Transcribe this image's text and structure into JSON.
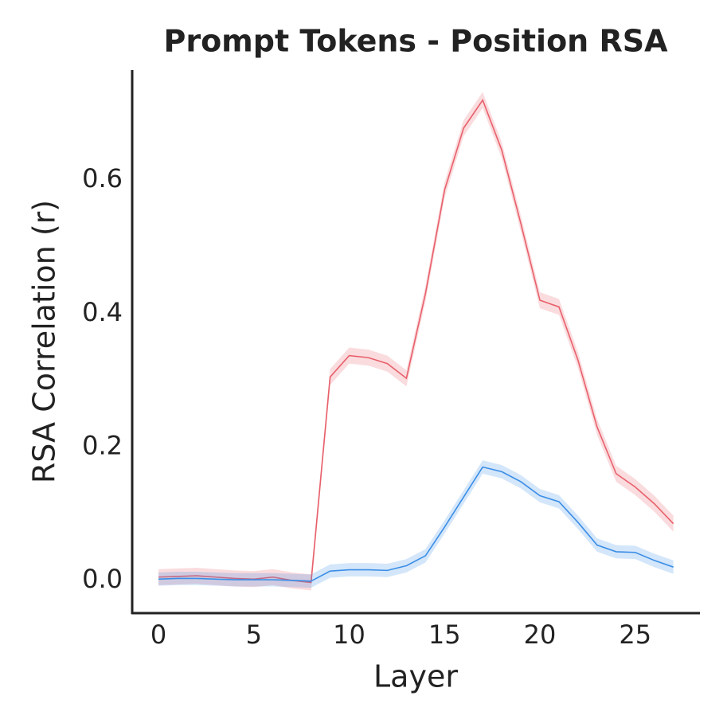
{
  "chart_data": {
    "type": "line",
    "title": "Prompt Tokens - Position RSA",
    "x_label": "Layer",
    "y_label": "RSA Correlation (r)",
    "x": [
      0,
      1,
      2,
      3,
      4,
      5,
      6,
      7,
      8,
      9,
      10,
      11,
      12,
      13,
      14,
      15,
      16,
      17,
      18,
      19,
      20,
      21,
      22,
      23,
      24,
      25,
      26,
      27
    ],
    "series": [
      {
        "color": "#e8606b",
        "error": 0.012,
        "values": [
          0.005,
          0.006,
          0.007,
          0.005,
          0.003,
          0.002,
          0.005,
          0.0,
          -0.003,
          0.305,
          0.337,
          0.334,
          0.325,
          0.303,
          0.43,
          0.585,
          0.678,
          0.72,
          0.645,
          0.535,
          0.42,
          0.41,
          0.33,
          0.23,
          0.16,
          0.14,
          0.115,
          0.085
        ]
      },
      {
        "color": "#3a8ee6",
        "error": 0.01,
        "values": [
          0.002,
          0.003,
          0.003,
          0.002,
          0.001,
          0.001,
          0.001,
          0.0,
          -0.001,
          0.014,
          0.016,
          0.016,
          0.015,
          0.022,
          0.037,
          0.08,
          0.125,
          0.17,
          0.163,
          0.148,
          0.127,
          0.118,
          0.087,
          0.053,
          0.043,
          0.042,
          0.03,
          0.02
        ]
      }
    ],
    "xlim": [
      -1.38,
      28.35
    ],
    "ylim": [
      -0.049,
      0.765
    ],
    "xticks": [
      0,
      5,
      10,
      15,
      20,
      25
    ],
    "yticks": [
      {
        "value": 0,
        "label": "0.0"
      },
      0.2,
      0.4,
      0.6
    ],
    "grid": false
  }
}
